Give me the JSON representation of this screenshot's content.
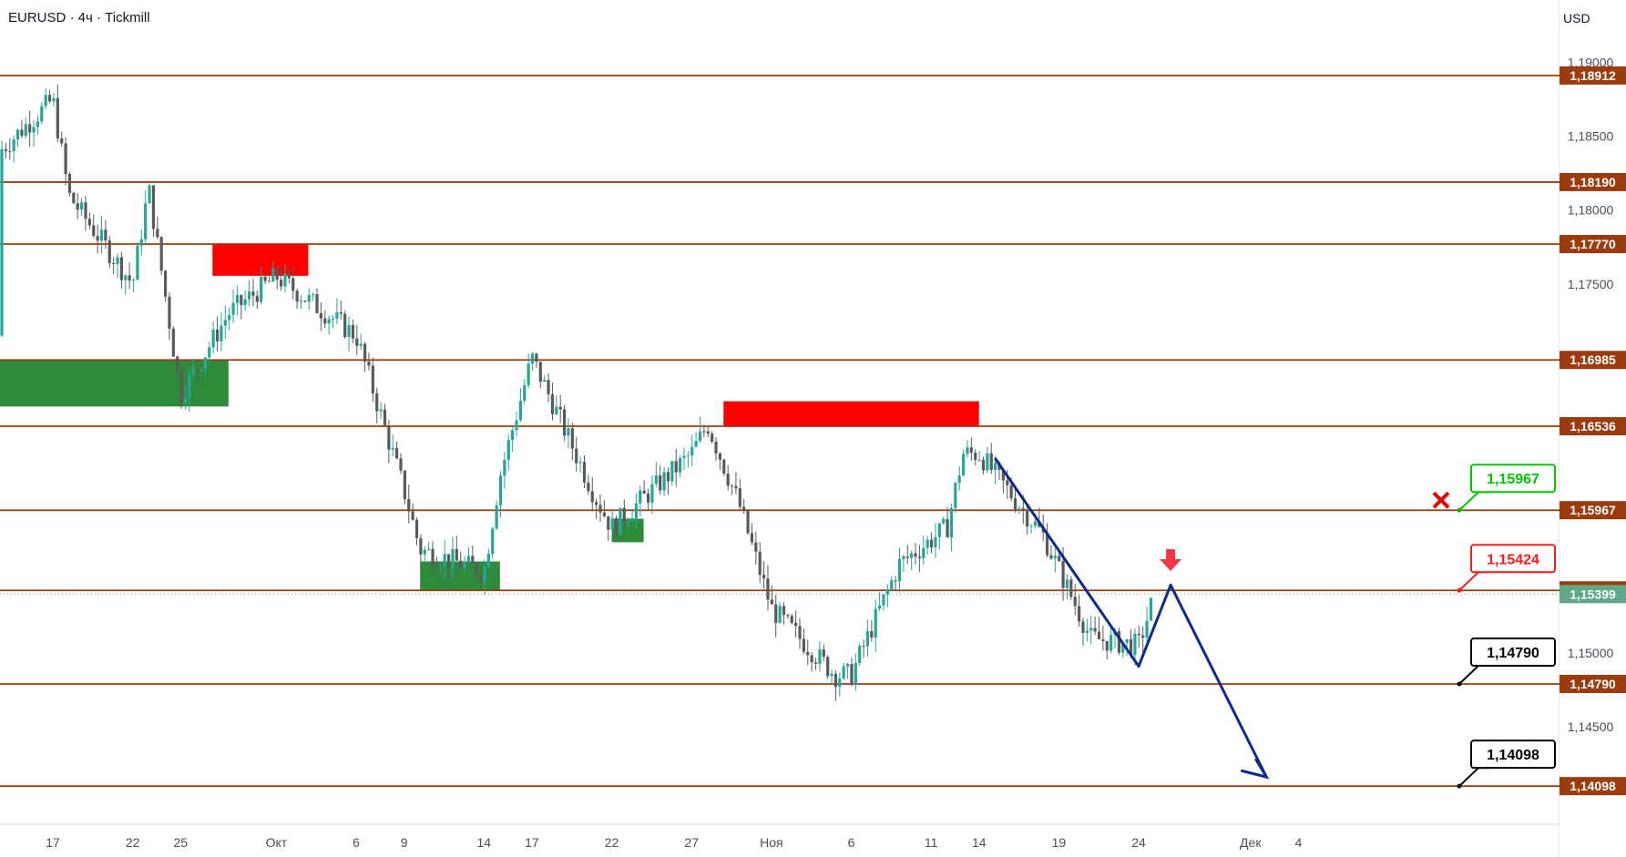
{
  "header": {
    "title": "EURUSD · 4ч · Tickmill",
    "currency": "USD"
  },
  "colors": {
    "up": "#26a69a",
    "down": "#5a5a5a",
    "level_line": "#9c3c0e",
    "level_label_bg": "#9c3c0e",
    "supply_zone": "#ff0000",
    "demand_zone": "#2e8b3a",
    "forecast_line": "#0b2a8f",
    "current_price_bg": "#5fa88a",
    "callout_green": "#00c800",
    "callout_red": "#ff1a1a",
    "callout_black": "#000000",
    "cross": "#e60000",
    "arrow": "#f23645"
  },
  "chart_data": {
    "type": "candlestick",
    "title": "EURUSD · 4ч · Tickmill",
    "ylabel": "USD",
    "ylim": [
      1.1384,
      1.193
    ],
    "y_ticks": [
      "1,19000",
      "1,18500",
      "1,18000",
      "1,17500",
      "1,15000",
      "1,14500"
    ],
    "x_ticks": [
      "17",
      "22",
      "25",
      "Окт",
      "6",
      "9",
      "14",
      "17",
      "22",
      "27",
      "Ноя",
      "6",
      "11",
      "14",
      "19",
      "24",
      "Дек",
      "4"
    ],
    "horizontal_levels": [
      {
        "value": 1.18912,
        "label": "1,18912"
      },
      {
        "value": 1.1819,
        "label": "1,18190"
      },
      {
        "value": 1.1777,
        "label": "1,17770"
      },
      {
        "value": 1.16985,
        "label": "1,16985"
      },
      {
        "value": 1.16536,
        "label": "1,16536"
      },
      {
        "value": 1.15967,
        "label": "1,15967"
      },
      {
        "value": 1.15424,
        "label": "1,15424"
      },
      {
        "value": 1.1479,
        "label": "1,14790"
      },
      {
        "value": 1.14098,
        "label": "1,14098"
      }
    ],
    "current_price": {
      "value": 1.15399,
      "label": "1,15399"
    },
    "callouts": [
      {
        "label": "1,15967",
        "value": 1.15967,
        "style": "green"
      },
      {
        "label": "1,15424",
        "value": 1.15424,
        "style": "red"
      },
      {
        "label": "1,14790",
        "value": 1.1479,
        "style": "black"
      },
      {
        "label": "1,14098",
        "value": 1.14098,
        "style": "black"
      }
    ],
    "zones": [
      {
        "kind": "supply",
        "from": "2025-09-27",
        "to": "2025-10-03",
        "low": 1.17555,
        "high": 1.1777
      },
      {
        "kind": "supply",
        "from": "2025-10-29",
        "to": "2025-11-14",
        "low": 1.16536,
        "high": 1.16705
      },
      {
        "kind": "demand",
        "from": "2025-09-05",
        "to": "2025-09-28",
        "low": 1.1667,
        "high": 1.16985
      },
      {
        "kind": "demand",
        "from": "2025-10-10",
        "to": "2025-10-15",
        "low": 1.15424,
        "high": 1.1562
      },
      {
        "kind": "demand",
        "from": "2025-10-22",
        "to": "2025-10-24",
        "low": 1.1575,
        "high": 1.1591
      }
    ],
    "forecast_path": [
      {
        "date": "2025-11-15",
        "price": 1.1632
      },
      {
        "date": "2025-11-24",
        "price": 1.1491
      },
      {
        "date": "2025-11-26",
        "price": 1.1546
      },
      {
        "date": "2025-12-02",
        "price": 1.1416
      }
    ],
    "swing_points": [
      {
        "date": "2025-09-05",
        "price": 1.1715
      },
      {
        "date": "2025-09-09",
        "price": 1.177
      },
      {
        "date": "2025-09-11",
        "price": 1.1812
      },
      {
        "date": "2025-09-17",
        "price": 1.1875
      },
      {
        "date": "2025-09-18",
        "price": 1.181
      },
      {
        "date": "2025-09-22",
        "price": 1.175
      },
      {
        "date": "2025-09-23",
        "price": 1.1815
      },
      {
        "date": "2025-09-25",
        "price": 1.1675
      },
      {
        "date": "2025-09-28",
        "price": 1.173
      },
      {
        "date": "2025-10-01",
        "price": 1.1755
      },
      {
        "date": "2025-10-06",
        "price": 1.1715
      },
      {
        "date": "2025-10-09",
        "price": 1.161
      },
      {
        "date": "2025-10-10",
        "price": 1.157
      },
      {
        "date": "2025-10-14",
        "price": 1.1555
      },
      {
        "date": "2025-10-15",
        "price": 1.162
      },
      {
        "date": "2025-10-17",
        "price": 1.17
      },
      {
        "date": "2025-10-21",
        "price": 1.1605
      },
      {
        "date": "2025-10-22",
        "price": 1.1585
      },
      {
        "date": "2025-10-27",
        "price": 1.1635
      },
      {
        "date": "2025-10-28",
        "price": 1.1655
      },
      {
        "date": "2025-10-30",
        "price": 1.16
      },
      {
        "date": "2025-11-01",
        "price": 1.153
      },
      {
        "date": "2025-11-05",
        "price": 1.1485
      },
      {
        "date": "2025-11-06",
        "price": 1.1485
      },
      {
        "date": "2025-11-09",
        "price": 1.156
      },
      {
        "date": "2025-11-12",
        "price": 1.1585
      },
      {
        "date": "2025-11-13",
        "price": 1.1635
      },
      {
        "date": "2025-11-14",
        "price": 1.1635
      },
      {
        "date": "2025-11-18",
        "price": 1.158
      },
      {
        "date": "2025-11-21",
        "price": 1.151
      },
      {
        "date": "2025-11-24",
        "price": 1.1505
      },
      {
        "date": "2025-11-25",
        "price": 1.154
      }
    ]
  }
}
